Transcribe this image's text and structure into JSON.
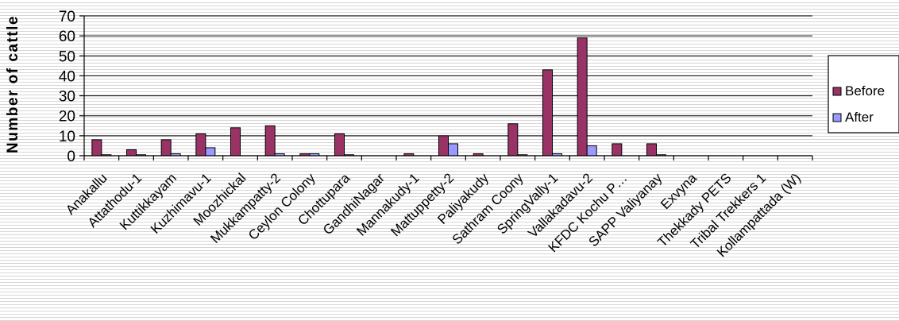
{
  "chart_data": {
    "type": "bar",
    "title": "",
    "xlabel": "",
    "ylabel": "Number of cattle",
    "ylim": [
      0,
      70
    ],
    "yticks": [
      0,
      10,
      20,
      30,
      40,
      50,
      60,
      70
    ],
    "grid": true,
    "legend_position": "right",
    "categories": [
      "Anakallu",
      "Attathodu-1",
      "Kuttikkayam",
      "Kuzhimavu-1",
      "Moozhickal",
      "Mukkampatty-2",
      "Ceylon Colony",
      "Chottupara",
      "GandhiNagar",
      "Mannakudy-1",
      "Mattuppetty-2",
      "Paliyakudy",
      "Sathram Coony",
      "SpringVally-1",
      "Vallakadavu-2",
      "KFDC Kochu P…",
      "SAPP Valiyanay",
      "Exvyna",
      "Thekkady PETS",
      "Tribal Trekkers 1",
      "Kollampattada (W)"
    ],
    "series": [
      {
        "name": "Before",
        "color": "#993366",
        "values": [
          8,
          3,
          8,
          11,
          14,
          15,
          1,
          11,
          0,
          1,
          10,
          1,
          16,
          43,
          59,
          6,
          6,
          0,
          0,
          0,
          0
        ]
      },
      {
        "name": "After",
        "color": "#9999ff",
        "values": [
          0.5,
          0.5,
          1,
          4,
          0,
          1,
          1,
          0.5,
          0,
          0,
          6,
          0,
          0.5,
          1,
          5,
          0,
          0.5,
          0,
          0,
          0,
          0
        ]
      }
    ]
  }
}
